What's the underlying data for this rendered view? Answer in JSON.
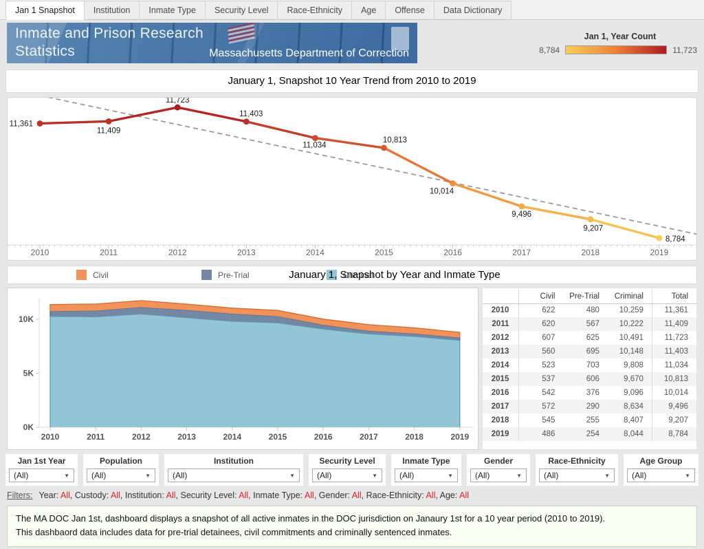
{
  "tabs": {
    "items": [
      "Jan 1 Snapshot",
      "Institution",
      "Inmate Type",
      "Security Level",
      "Race-Ethnicity",
      "Age",
      "Offense",
      "Data Dictionary"
    ],
    "active_index": 0
  },
  "banner": {
    "title_line1": "Inmate and Prison Research",
    "title_line2": "Statistics",
    "subtitle": "Massachusetts Department of Correction"
  },
  "color_legend": {
    "title": "Jan 1, Year Count",
    "min_label": "8,784",
    "max_label": "11,723",
    "gradient": [
      "#f8ce58",
      "#ed8038",
      "#ad1b22"
    ]
  },
  "trend_title": "January 1, Snapshot 10 Year Trend from  2010 to 2019",
  "type_title": "January 1, Snapshot by Year and Inmate Type",
  "type_legend": [
    {
      "label": "Civil",
      "color": "#f0925a"
    },
    {
      "label": "Pre-Trial",
      "color": "#7288a5"
    },
    {
      "label": "Criminal",
      "color": "#92c5d6"
    }
  ],
  "chart_data": [
    {
      "type": "line",
      "title": "January 1, Snapshot 10 Year Trend from  2010 to 2019",
      "x": [
        "2010",
        "2011",
        "2012",
        "2013",
        "2014",
        "2015",
        "2016",
        "2017",
        "2018",
        "2019"
      ],
      "values": [
        11361,
        11409,
        11723,
        11403,
        11034,
        10813,
        10014,
        9496,
        9207,
        8784
      ],
      "point_labels": [
        "11,361",
        "11,409",
        "11,723",
        "11,403",
        "11,034",
        "10,813",
        "10,014",
        "9,496",
        "9,207",
        "8,784"
      ],
      "label_offsets": [
        [
          -10,
          4,
          "end"
        ],
        [
          0,
          17,
          "middle"
        ],
        [
          0,
          -7,
          "middle"
        ],
        [
          7,
          -8,
          "middle"
        ],
        [
          -1,
          14,
          "middle"
        ],
        [
          16,
          -8,
          "middle"
        ],
        [
          -16,
          15,
          "middle"
        ],
        [
          0,
          15,
          "middle"
        ],
        [
          4,
          17,
          "middle"
        ],
        [
          9,
          5,
          "start"
        ]
      ],
      "ylim": [
        8630,
        11910
      ],
      "color_scale": {
        "min": 8784,
        "max": 11723,
        "stops": [
          "#f8ce58",
          "#ed8038",
          "#ad1b22"
        ]
      },
      "trend_line": {
        "start_value": 11990,
        "end_value": 9050,
        "style": "dashed"
      },
      "grid": false,
      "legend_position": "top-right"
    },
    {
      "type": "area",
      "title": "January 1, Snapshot by Year and Inmate Type",
      "categories": [
        "2010",
        "2011",
        "2012",
        "2013",
        "2014",
        "2015",
        "2016",
        "2017",
        "2018",
        "2019"
      ],
      "series": [
        {
          "name": "Criminal",
          "color": "#92c5d6",
          "edge": "#5b9cb8",
          "values": [
            10259,
            10222,
            10491,
            10148,
            9808,
            9670,
            9096,
            8634,
            8407,
            8044
          ]
        },
        {
          "name": "Pre-Trial",
          "color": "#7288a5",
          "edge": "#4f6b8d",
          "values": [
            480,
            567,
            625,
            695,
            703,
            606,
            376,
            290,
            255,
            254
          ]
        },
        {
          "name": "Civil",
          "color": "#f0925a",
          "edge": "#d06c30",
          "values": [
            622,
            620,
            607,
            560,
            523,
            537,
            542,
            572,
            545,
            486
          ]
        }
      ],
      "stacked": true,
      "legend_order": [
        "Civil",
        "Pre-Trial",
        "Criminal"
      ],
      "yticks": [
        {
          "label": "0K",
          "value": 0
        },
        {
          "label": "5K",
          "value": 5000
        },
        {
          "label": "10K",
          "value": 10000
        }
      ],
      "ylim": [
        0,
        12300
      ],
      "grid": false
    }
  ],
  "table": {
    "columns": [
      "",
      "Civil",
      "Pre-Trial",
      "Criminal",
      "Total"
    ],
    "rows": [
      [
        "2010",
        "622",
        "480",
        "10,259",
        "11,361"
      ],
      [
        "2011",
        "620",
        "567",
        "10,222",
        "11,409"
      ],
      [
        "2012",
        "607",
        "625",
        "10,491",
        "11,723"
      ],
      [
        "2013",
        "560",
        "695",
        "10,148",
        "11,403"
      ],
      [
        "2014",
        "523",
        "703",
        "9,808",
        "11,034"
      ],
      [
        "2015",
        "537",
        "606",
        "9,670",
        "10,813"
      ],
      [
        "2016",
        "542",
        "376",
        "9,096",
        "10,014"
      ],
      [
        "2017",
        "572",
        "290",
        "8,634",
        "9,496"
      ],
      [
        "2018",
        "545",
        "255",
        "8,407",
        "9,207"
      ],
      [
        "2019",
        "486",
        "254",
        "8,044",
        "8,784"
      ]
    ]
  },
  "filter_controls": [
    {
      "label": "Jan 1st Year",
      "value": "(All)"
    },
    {
      "label": "Population",
      "value": "(All)"
    },
    {
      "label": "Institution",
      "value": "(All)"
    },
    {
      "label": "Security Level",
      "value": "(All)"
    },
    {
      "label": "Inmate Type",
      "value": "(All)"
    },
    {
      "label": "Gender",
      "value": "(All)"
    },
    {
      "label": "Race-Ethnicity",
      "value": "(All)"
    },
    {
      "label": "Age Group",
      "value": "(All)"
    }
  ],
  "filters_line": {
    "prefix": "Filters:",
    "items": [
      {
        "label": "Year",
        "value": "All"
      },
      {
        "label": "Custody",
        "value": "All"
      },
      {
        "label": "Institution",
        "value": "All"
      },
      {
        "label": "Security Level",
        "value": "All"
      },
      {
        "label": "Inmate Type",
        "value": "All"
      },
      {
        "label": "Gender",
        "value": "All"
      },
      {
        "label": "Race-Ethnicity",
        "value": "All"
      },
      {
        "label": "Age",
        "value": "All"
      }
    ]
  },
  "footer": {
    "line1": "The MA DOC Jan 1st, dashboard displays a snapshot of all active inmates in the DOC jurisdiction on Janaury 1st for a 10 year period (2010 to 2019).",
    "line2": "This dashbaord data includes data for pre-trial detainees, civil commitments and criminally sentenced inmates."
  }
}
